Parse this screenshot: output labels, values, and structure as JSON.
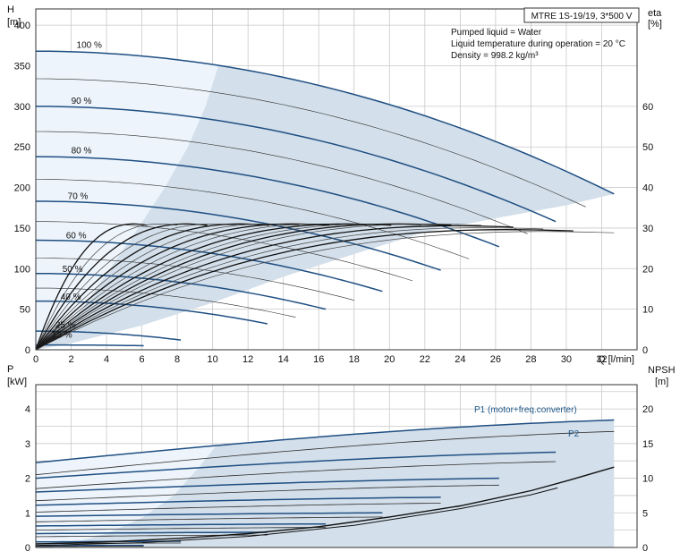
{
  "chart_data": [
    {
      "type": "line",
      "panel": "head",
      "left_axis_label_top": "H",
      "left_axis_label_bottom": "[m]",
      "right_axis_label_top": "eta",
      "right_axis_label_bottom": "[%]",
      "xlabel": "Q [l/min]",
      "xlim": [
        0,
        34
      ],
      "x_ticks": [
        0,
        2,
        4,
        6,
        8,
        10,
        12,
        14,
        16,
        18,
        20,
        22,
        24,
        26,
        28,
        30,
        32
      ],
      "ylim": [
        0,
        420
      ],
      "y_ticks": [
        0,
        50,
        100,
        150,
        200,
        250,
        300,
        350,
        400
      ],
      "y2lim": [
        0,
        84
      ],
      "y2_ticks": [
        0,
        10,
        20,
        30,
        40,
        50,
        60
      ],
      "grid": true,
      "info_box": "MTRE 1S-19/19, 3*500 V",
      "annotations": [
        "Pumped liquid = Water",
        "Liquid temperature during operation = 20 °C",
        "Density = 998.2 kg/m³"
      ],
      "speed_labels": [
        {
          "label": "100 %",
          "q": 1.9,
          "h": 372
        },
        {
          "label": "90 %",
          "q": 1.6,
          "h": 303
        },
        {
          "label": "80 %",
          "q": 1.6,
          "h": 242
        },
        {
          "label": "70 %",
          "q": 1.4,
          "h": 186
        },
        {
          "label": "60 %",
          "q": 1.3,
          "h": 137
        },
        {
          "label": "50 %",
          "q": 1.1,
          "h": 96
        },
        {
          "label": "40 %",
          "q": 1.0,
          "h": 62
        },
        {
          "label": "25 %",
          "q": 0.7,
          "h": 27
        },
        {
          "label": "13 %",
          "q": 0.5,
          "h": 15
        }
      ],
      "speeds": [
        {
          "pct": 100,
          "h0": 368,
          "qmax": 32.7,
          "hmax": 192,
          "style": "dark"
        },
        {
          "pct": 95,
          "h0": 334,
          "qmax": 31.1,
          "hmax": 176,
          "style": "thin"
        },
        {
          "pct": 90,
          "h0": 300,
          "qmax": 29.4,
          "hmax": 158,
          "style": "dark"
        },
        {
          "pct": 85,
          "h0": 269,
          "qmax": 27.8,
          "hmax": 143,
          "style": "thin"
        },
        {
          "pct": 80,
          "h0": 238,
          "qmax": 26.2,
          "hmax": 127,
          "style": "dark"
        },
        {
          "pct": 75,
          "h0": 210,
          "qmax": 24.5,
          "hmax": 112,
          "style": "thin"
        },
        {
          "pct": 70,
          "h0": 183,
          "qmax": 22.9,
          "hmax": 98,
          "style": "dark"
        },
        {
          "pct": 65,
          "h0": 158,
          "qmax": 21.3,
          "hmax": 85,
          "style": "thin"
        },
        {
          "pct": 60,
          "h0": 135,
          "qmax": 19.6,
          "hmax": 72,
          "style": "dark"
        },
        {
          "pct": 55,
          "h0": 113,
          "qmax": 18.0,
          "hmax": 61,
          "style": "thin"
        },
        {
          "pct": 50,
          "h0": 94,
          "qmax": 16.4,
          "hmax": 50,
          "style": "dark"
        },
        {
          "pct": 45,
          "h0": 76,
          "qmax": 14.7,
          "hmax": 40,
          "style": "thin"
        },
        {
          "pct": 40,
          "h0": 60,
          "qmax": 13.1,
          "hmax": 32,
          "style": "dark"
        },
        {
          "pct": 25,
          "h0": 23,
          "qmax": 8.2,
          "hmax": 12,
          "style": "dark"
        },
        {
          "pct": 13,
          "h0": 6,
          "qmax": 6.1,
          "hmax": 5,
          "style": "dark"
        }
      ],
      "region_boundary": [
        [
          0,
          0
        ],
        [
          2,
          8
        ],
        [
          6,
          30
        ],
        [
          10,
          58
        ],
        [
          14,
          90
        ],
        [
          18,
          118
        ],
        [
          22,
          145
        ],
        [
          26,
          162
        ],
        [
          30,
          178
        ],
        [
          32.7,
          192
        ]
      ],
      "eta_curves": [
        {
          "qmax": 6.3,
          "peak": 33
        },
        {
          "qmax": 8.0,
          "peak": 33
        },
        {
          "qmax": 9.7,
          "peak": 33
        },
        {
          "qmax": 11.4,
          "peak": 33
        },
        {
          "qmax": 13.2,
          "peak": 33
        },
        {
          "qmax": 14.9,
          "peak": 33
        },
        {
          "qmax": 16.6,
          "peak": 33
        },
        {
          "qmax": 18.3,
          "peak": 33
        },
        {
          "qmax": 20.1,
          "peak": 33
        },
        {
          "qmax": 21.8,
          "peak": 33
        },
        {
          "qmax": 23.5,
          "peak": 33
        },
        {
          "qmax": 25.2,
          "peak": 33
        },
        {
          "qmax": 27.0,
          "peak": 32.5
        },
        {
          "qmax": 28.7,
          "peak": 32
        },
        {
          "qmax": 30.4,
          "peak": 31.5
        },
        {
          "qmax": 32.7,
          "peak": 31
        }
      ]
    },
    {
      "type": "line",
      "panel": "power_npsh",
      "left_axis_label_top": "P",
      "left_axis_label_bottom": "[kW]",
      "right_axis_label_top": "NPSH",
      "right_axis_label_bottom": "[m]",
      "xlim": [
        0,
        34
      ],
      "ylim": [
        0,
        4.7
      ],
      "y_ticks": [
        0,
        1,
        2,
        3,
        4
      ],
      "y2lim": [
        0,
        23.5
      ],
      "y2_ticks": [
        0,
        5,
        10,
        15,
        20
      ],
      "grid": true,
      "series_labels": [
        "P1 (motor+freq.converter)",
        "P2"
      ],
      "p1_curves": [
        {
          "pct": 100,
          "p0": 2.45,
          "p_end": 3.68,
          "qmax": 32.7
        },
        {
          "pct": 90,
          "p0": 2.0,
          "p_end": 2.75,
          "qmax": 29.4
        },
        {
          "pct": 80,
          "p0": 1.6,
          "p_end": 2.0,
          "qmax": 26.2
        },
        {
          "pct": 70,
          "p0": 1.22,
          "p_end": 1.45,
          "qmax": 22.9
        },
        {
          "pct": 60,
          "p0": 0.9,
          "p_end": 1.0,
          "qmax": 19.6
        },
        {
          "pct": 50,
          "p0": 0.62,
          "p_end": 0.68,
          "qmax": 16.4
        },
        {
          "pct": 40,
          "p0": 0.4,
          "p_end": 0.44,
          "qmax": 13.1
        },
        {
          "pct": 25,
          "p0": 0.16,
          "p_end": 0.18,
          "qmax": 8.2
        },
        {
          "pct": 13,
          "p0": 0.05,
          "p_end": 0.06,
          "qmax": 6.1
        }
      ],
      "p2_curves": [
        {
          "pct": 100,
          "p0": 2.1,
          "p_end": 3.35,
          "qmax": 32.7
        },
        {
          "pct": 90,
          "p0": 1.7,
          "p_end": 2.48,
          "qmax": 29.4
        },
        {
          "pct": 80,
          "p0": 1.35,
          "p_end": 1.8,
          "qmax": 26.2
        },
        {
          "pct": 70,
          "p0": 1.02,
          "p_end": 1.28,
          "qmax": 22.9
        },
        {
          "pct": 60,
          "p0": 0.74,
          "p_end": 0.88,
          "qmax": 19.6
        },
        {
          "pct": 50,
          "p0": 0.5,
          "p_end": 0.58,
          "qmax": 16.4
        },
        {
          "pct": 40,
          "p0": 0.31,
          "p_end": 0.36,
          "qmax": 13.1
        },
        {
          "pct": 25,
          "p0": 0.11,
          "p_end": 0.13,
          "qmax": 8.2
        },
        {
          "pct": 13,
          "p0": 0.03,
          "p_end": 0.04,
          "qmax": 6.1
        }
      ],
      "npsh_curve": [
        [
          0,
          0.5
        ],
        [
          4,
          0.8
        ],
        [
          8,
          1.3
        ],
        [
          12,
          2.0
        ],
        [
          16,
          3.0
        ],
        [
          20,
          4.4
        ],
        [
          24,
          6.0
        ],
        [
          28,
          8.2
        ],
        [
          30,
          9.6
        ],
        [
          32.7,
          11.6
        ]
      ],
      "npsh_curve_b": [
        [
          0,
          0.3
        ],
        [
          6,
          0.7
        ],
        [
          12,
          1.6
        ],
        [
          18,
          3.2
        ],
        [
          24,
          5.6
        ],
        [
          28,
          7.6
        ],
        [
          29.5,
          8.6
        ]
      ]
    }
  ]
}
